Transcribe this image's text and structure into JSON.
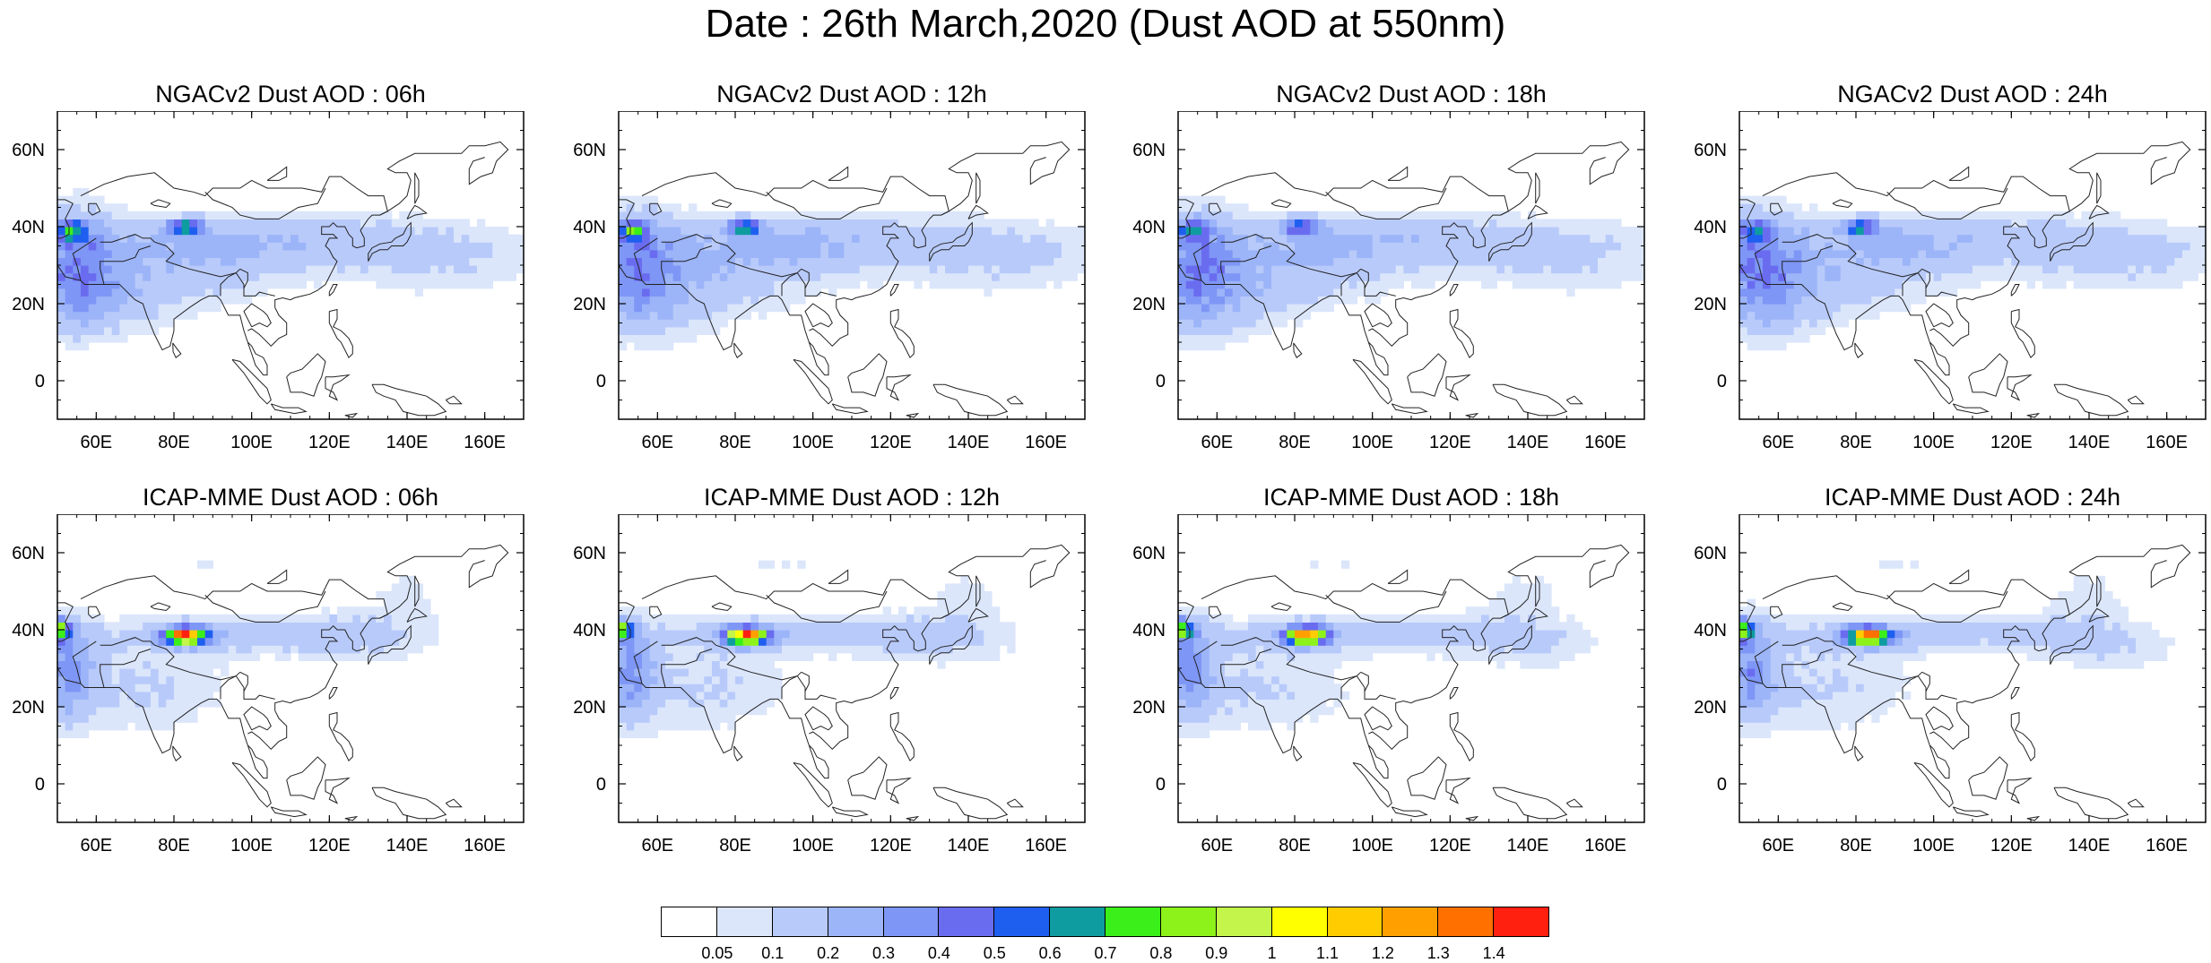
{
  "title": "Date : 26th March,2020 (Dust AOD at 550nm)",
  "panels": [
    {
      "title": "NGACv2 Dust AOD : 06h",
      "model": "NGACv2",
      "lead": "06h"
    },
    {
      "title": "NGACv2 Dust AOD : 12h",
      "model": "NGACv2",
      "lead": "12h"
    },
    {
      "title": "NGACv2 Dust AOD : 18h",
      "model": "NGACv2",
      "lead": "18h"
    },
    {
      "title": "NGACv2 Dust AOD : 24h",
      "model": "NGACv2",
      "lead": "24h"
    },
    {
      "title": "ICAP-MME Dust AOD : 06h",
      "model": "ICAP-MME",
      "lead": "06h"
    },
    {
      "title": "ICAP-MME Dust AOD : 12h",
      "model": "ICAP-MME",
      "lead": "12h"
    },
    {
      "title": "ICAP-MME Dust AOD : 18h",
      "model": "ICAP-MME",
      "lead": "18h"
    },
    {
      "title": "ICAP-MME Dust AOD : 24h",
      "model": "ICAP-MME",
      "lead": "24h"
    }
  ],
  "axes": {
    "lon_range": [
      50,
      170
    ],
    "lat_range": [
      -10,
      70
    ],
    "x_ticks": [
      "60E",
      "80E",
      "100E",
      "120E",
      "140E",
      "160E"
    ],
    "x_tick_values": [
      60,
      80,
      100,
      120,
      140,
      160
    ],
    "y_ticks": [
      "0",
      "20N",
      "40N",
      "60N"
    ],
    "y_tick_values": [
      0,
      20,
      40,
      60
    ]
  },
  "colorbar": {
    "labels": [
      "0.05",
      "0.1",
      "0.2",
      "0.3",
      "0.4",
      "0.5",
      "0.6",
      "0.7",
      "0.8",
      "0.9",
      "1",
      "1.1",
      "1.2",
      "1.3",
      "1.4"
    ],
    "colors": [
      "#ffffff",
      "#dbe6fb",
      "#b8cafa",
      "#9cb4f8",
      "#7e96f5",
      "#6a6cf0",
      "#1f5ff0",
      "#0f9ca0",
      "#3bef1a",
      "#8cf21a",
      "#c3f54a",
      "#ffff00",
      "#ffcc00",
      "#ffa000",
      "#ff7000",
      "#ff2010"
    ]
  }
}
